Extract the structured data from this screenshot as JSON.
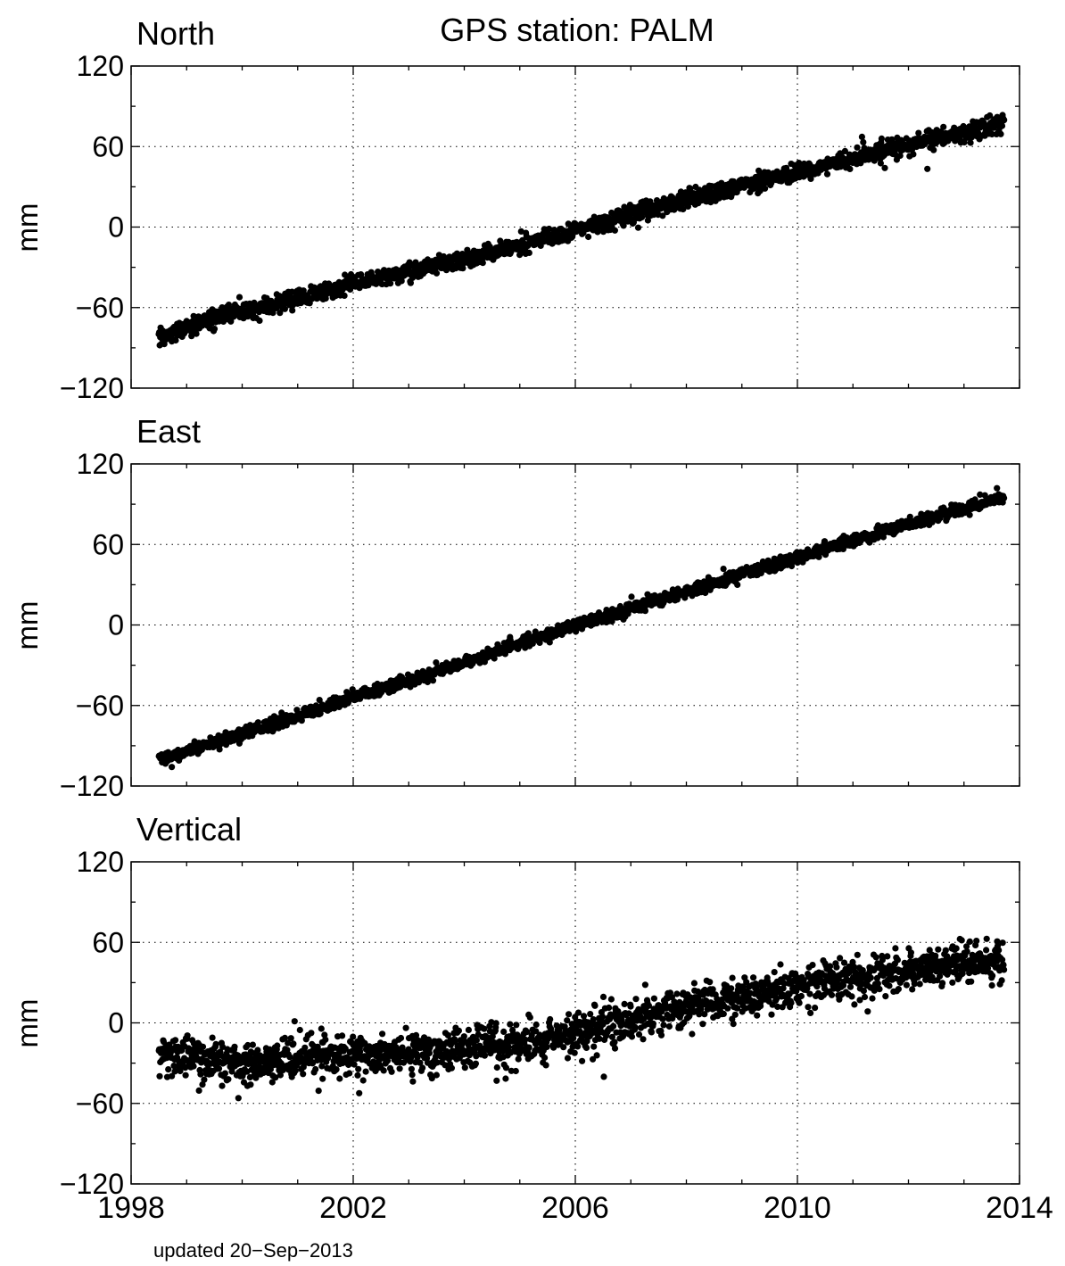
{
  "figure": {
    "title": "GPS station: PALM",
    "footer": "updated 20−Sep−2013",
    "point_color": "#000000",
    "background": "#ffffff"
  },
  "chart_data": [
    {
      "type": "scatter",
      "title": "North",
      "ylabel": "mm",
      "xlabel": "",
      "xlim": [
        1998,
        2014
      ],
      "ylim": [
        -120,
        120
      ],
      "xticks": [
        "1998",
        "2002",
        "2006",
        "2010",
        "2014"
      ],
      "xtick_values": [
        1998,
        2002,
        2006,
        2010,
        2014
      ],
      "yticks": [
        "120",
        "60",
        "0",
        "−60",
        "−120"
      ],
      "ytick_values": [
        120,
        60,
        0,
        -60,
        -120
      ],
      "grid": true,
      "series": [
        {
          "x": [
            1998.5,
            1998.75,
            1999.0,
            1999.5,
            2000.0,
            2000.5,
            2001.0,
            2001.5,
            2002.0,
            2002.5,
            2003.0,
            2003.5,
            2004.0,
            2004.5,
            2005.0,
            2005.5,
            2006.0,
            2006.5,
            2007.0,
            2007.5,
            2008.0,
            2008.5,
            2009.0,
            2009.5,
            2010.0,
            2010.5,
            2011.0,
            2011.5,
            2012.0,
            2012.5,
            2013.0,
            2013.5,
            2013.72
          ],
          "values": [
            -82,
            -80,
            -75,
            -68,
            -63,
            -58,
            -54,
            -48,
            -42,
            -38,
            -33,
            -28,
            -24,
            -19,
            -14,
            -8,
            -3,
            3,
            9,
            14,
            20,
            26,
            31,
            36,
            41,
            46,
            51,
            56,
            61,
            66,
            70,
            75,
            78
          ],
          "scatter_noise_mm": 3.2
        }
      ]
    },
    {
      "type": "scatter",
      "title": "East",
      "ylabel": "mm",
      "xlabel": "",
      "xlim": [
        1998,
        2014
      ],
      "ylim": [
        -120,
        120
      ],
      "xticks": [
        "1998",
        "2002",
        "2006",
        "2010",
        "2014"
      ],
      "xtick_values": [
        1998,
        2002,
        2006,
        2010,
        2014
      ],
      "yticks": [
        "120",
        "60",
        "0",
        "−60",
        "−120"
      ],
      "ytick_values": [
        120,
        60,
        0,
        -60,
        -120
      ],
      "grid": true,
      "series": [
        {
          "x": [
            1998.5,
            1999.0,
            1999.5,
            2000.0,
            2000.5,
            2001.0,
            2001.5,
            2002.0,
            2002.5,
            2003.0,
            2003.5,
            2004.0,
            2004.5,
            2005.0,
            2005.5,
            2006.0,
            2006.5,
            2007.0,
            2007.5,
            2008.0,
            2008.5,
            2009.0,
            2009.5,
            2010.0,
            2010.5,
            2011.0,
            2011.5,
            2012.0,
            2012.5,
            2013.0,
            2013.5,
            2013.72
          ],
          "values": [
            -100,
            -94,
            -88,
            -81,
            -75,
            -68,
            -61,
            -54,
            -48,
            -42,
            -35,
            -28,
            -21,
            -14,
            -7,
            -1,
            6,
            12,
            19,
            25,
            31,
            38,
            44,
            50,
            57,
            63,
            69,
            75,
            81,
            87,
            93,
            96
          ],
          "scatter_noise_mm": 2.2
        }
      ]
    },
    {
      "type": "scatter",
      "title": "Vertical",
      "ylabel": "mm",
      "xlabel": "",
      "xlim": [
        1998,
        2014
      ],
      "ylim": [
        -120,
        120
      ],
      "xticks": [
        "1998",
        "2002",
        "2006",
        "2010",
        "2014"
      ],
      "xtick_values": [
        1998,
        2002,
        2006,
        2010,
        2014
      ],
      "yticks": [
        "120",
        "60",
        "0",
        "−60",
        "−120"
      ],
      "ytick_values": [
        120,
        60,
        0,
        -60,
        -120
      ],
      "grid": true,
      "series": [
        {
          "x": [
            1998.5,
            1999.0,
            1999.5,
            2000.0,
            2000.5,
            2001.0,
            2001.5,
            2002.0,
            2002.5,
            2003.0,
            2003.5,
            2004.0,
            2004.5,
            2005.0,
            2005.5,
            2006.0,
            2006.5,
            2007.0,
            2007.5,
            2008.0,
            2008.5,
            2009.0,
            2009.5,
            2010.0,
            2010.5,
            2011.0,
            2011.5,
            2012.0,
            2012.5,
            2013.0,
            2013.5,
            2013.72
          ],
          "values": [
            -25,
            -24,
            -30,
            -30,
            -28,
            -25,
            -23,
            -27,
            -25,
            -22,
            -22,
            -20,
            -17,
            -17,
            -14,
            -8,
            -4,
            3,
            8,
            12,
            17,
            19,
            22,
            27,
            30,
            33,
            37,
            38,
            42,
            45,
            46,
            44
          ],
          "scatter_noise_mm": 7.5
        }
      ]
    }
  ]
}
